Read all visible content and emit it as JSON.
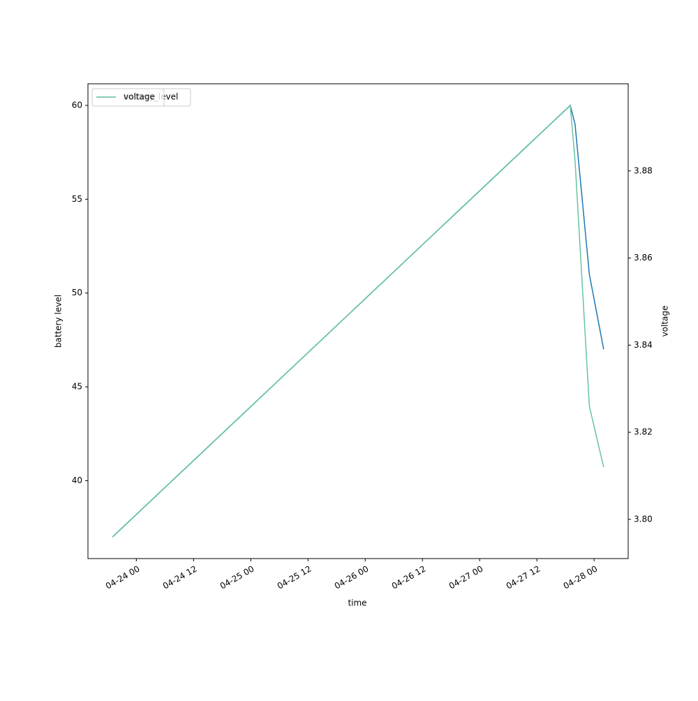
{
  "chart_data": {
    "type": "line",
    "xlabel": "time",
    "ylabel": "battery level",
    "y2label": "voltage",
    "x": [
      "04-23 19:00",
      "04-27 19:00",
      "04-27 20:00",
      "04-27 23:00",
      "04-28 02:00"
    ],
    "series": [
      {
        "name": "battery_level",
        "color": "#1f77b4",
        "axis": "y",
        "values": [
          37,
          60,
          59,
          51,
          47
        ]
      },
      {
        "name": "voltage",
        "color": "#66c2a5",
        "axis": "y2",
        "values": [
          3.796,
          3.895,
          3.8824,
          3.826,
          3.812
        ]
      }
    ],
    "xlim": [
      "04-23 13:51",
      "04-28 07:09"
    ],
    "xticks": [
      {
        "value": "04-24 00:00",
        "label": "04-24 00"
      },
      {
        "value": "04-24 12:00",
        "label": "04-24 12"
      },
      {
        "value": "04-25 00:00",
        "label": "04-25 00"
      },
      {
        "value": "04-25 12:00",
        "label": "04-25 12"
      },
      {
        "value": "04-26 00:00",
        "label": "04-26 00"
      },
      {
        "value": "04-26 12:00",
        "label": "04-26 12"
      },
      {
        "value": "04-27 00:00",
        "label": "04-27 00"
      },
      {
        "value": "04-27 12:00",
        "label": "04-27 12"
      },
      {
        "value": "04-28 00:00",
        "label": "04-28 00"
      }
    ],
    "ylim": [
      35.85,
      61.15
    ],
    "yticks": [
      40,
      45,
      50,
      55,
      60
    ],
    "y2lim": [
      3.791,
      3.9
    ],
    "y2ticks": [
      {
        "value": 3.8,
        "label": "3.80"
      },
      3.82,
      3.84,
      3.86,
      3.88
    ],
    "legend": "upper left"
  }
}
